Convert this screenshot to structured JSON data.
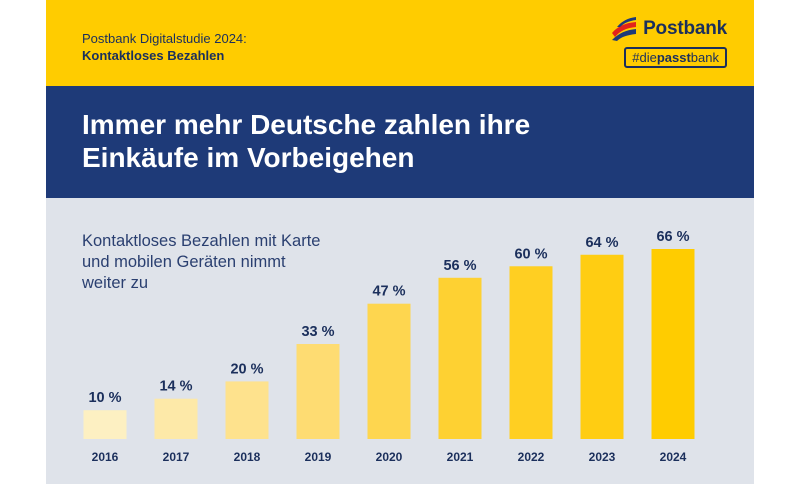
{
  "header": {
    "study_line1": "Postbank Digitalstudie 2024:",
    "study_line2": "Kontaktloses Bezahlen",
    "brand": "Postbank",
    "hashtag_prefix": "#die",
    "hashtag_bold": "passt",
    "hashtag_suffix": "bank"
  },
  "headline": {
    "line1": "Immer mehr Deutsche zahlen ihre",
    "line2": "Einkäufe im Vorbeigehen"
  },
  "subtitle": {
    "line1": "Kontaktloses Bezahlen mit Karte",
    "line2": "und mobilen Geräten nimmt",
    "line3": "weiter zu"
  },
  "colors": {
    "yellow": "#ffcc00",
    "navy": "#1e3a78",
    "text_navy": "#1b2f5c",
    "panel": "#dfe3ea",
    "logo_red": "#e2231a",
    "logo_blue": "#1e3a78",
    "bar_colors": [
      "#fdf0c2",
      "#fde9a8",
      "#fee28d",
      "#fedc72",
      "#fed64f",
      "#fed132",
      "#ffcf22",
      "#ffcd12",
      "#ffcc00"
    ]
  },
  "chart_data": {
    "type": "bar",
    "title": "Kontaktloses Bezahlen mit Karte und mobilen Geräten nimmt weiter zu",
    "categories": [
      "2016",
      "2017",
      "2018",
      "2019",
      "2020",
      "2021",
      "2022",
      "2023",
      "2024"
    ],
    "values": [
      10,
      14,
      20,
      33,
      47,
      56,
      60,
      64,
      66
    ],
    "labels": [
      "10 %",
      "14 %",
      "20 %",
      "33 %",
      "47 %",
      "56 %",
      "60 %",
      "64 %",
      "66 %"
    ],
    "unit": "%",
    "xlabel": "",
    "ylabel": "",
    "ylim": [
      0,
      66
    ],
    "grid": false,
    "legend": "none"
  }
}
